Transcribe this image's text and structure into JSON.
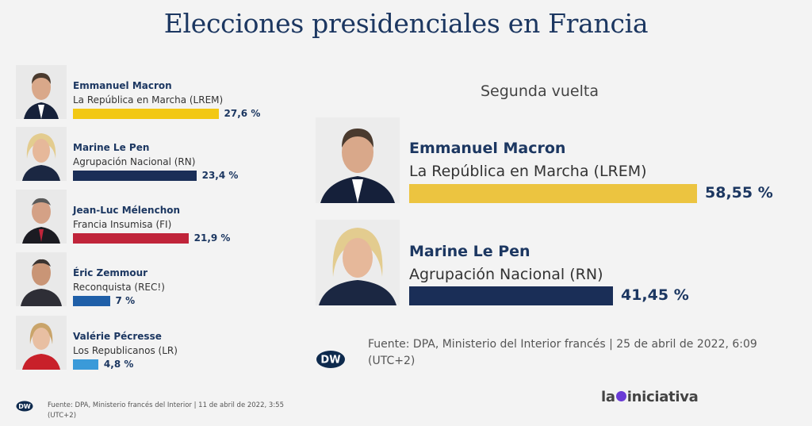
{
  "title": "Elecciones presidenciales en Francia",
  "first_round": {
    "candidates": [
      {
        "name": "Emmanuel Macron",
        "party": "La República en Marcha (LREM)",
        "label": "27,6 %",
        "value": 27.6,
        "color": "#f2c814"
      },
      {
        "name": "Marine Le Pen",
        "party": "Agrupación Nacional (RN)",
        "label": "23,4 %",
        "value": 23.4,
        "color": "#1a2e57"
      },
      {
        "name": "Jean-Luc Mélenchon",
        "party": "Francia Insumisa (FI)",
        "label": "21,9 %",
        "value": 21.9,
        "color": "#c0243a"
      },
      {
        "name": "Éric Zemmour",
        "party": "Reconquista (REC!)",
        "label": "7 %",
        "value": 7,
        "color": "#1f5fa8"
      },
      {
        "name": "Valérie Pécresse",
        "party": "Los Republicanos (LR)",
        "label": "4,8 %",
        "value": 4.8,
        "color": "#3a9ad9"
      }
    ],
    "source": "Fuente: DPA, Ministerio francés del Interior | 11 de abril de 2022, 3:55 (UTC+2)"
  },
  "second_round": {
    "label": "Segunda vuelta",
    "candidates": [
      {
        "name": "Emmanuel Macron",
        "party": "La República en Marcha (LREM)",
        "label": "58,55 %",
        "value": 58.55,
        "color": "#ecc440"
      },
      {
        "name": "Marine Le Pen",
        "party": "Agrupación Nacional (RN)",
        "label": "41,45 %",
        "value": 41.45,
        "color": "#1a2e57"
      }
    ],
    "source": "Fuente: DPA, Ministerio del Interior francés | 25 de abril de 2022, 6:09 (UTC+2)"
  },
  "brand": {
    "pre": "la",
    "post": "iniciativa"
  },
  "logo": "DW",
  "chart_data": [
    {
      "type": "bar",
      "categories": [
        "Emmanuel Macron",
        "Marine Le Pen",
        "Jean-Luc Mélenchon",
        "Éric Zemmour",
        "Valérie Pécresse"
      ],
      "values": [
        27.6,
        23.4,
        21.9,
        7,
        4.8
      ],
      "title": "",
      "xlabel": "",
      "ylabel": ""
    },
    {
      "type": "bar",
      "categories": [
        "Emmanuel Macron",
        "Marine Le Pen"
      ],
      "values": [
        58.55,
        41.45
      ],
      "title": "Segunda vuelta",
      "xlabel": "",
      "ylabel": ""
    }
  ]
}
